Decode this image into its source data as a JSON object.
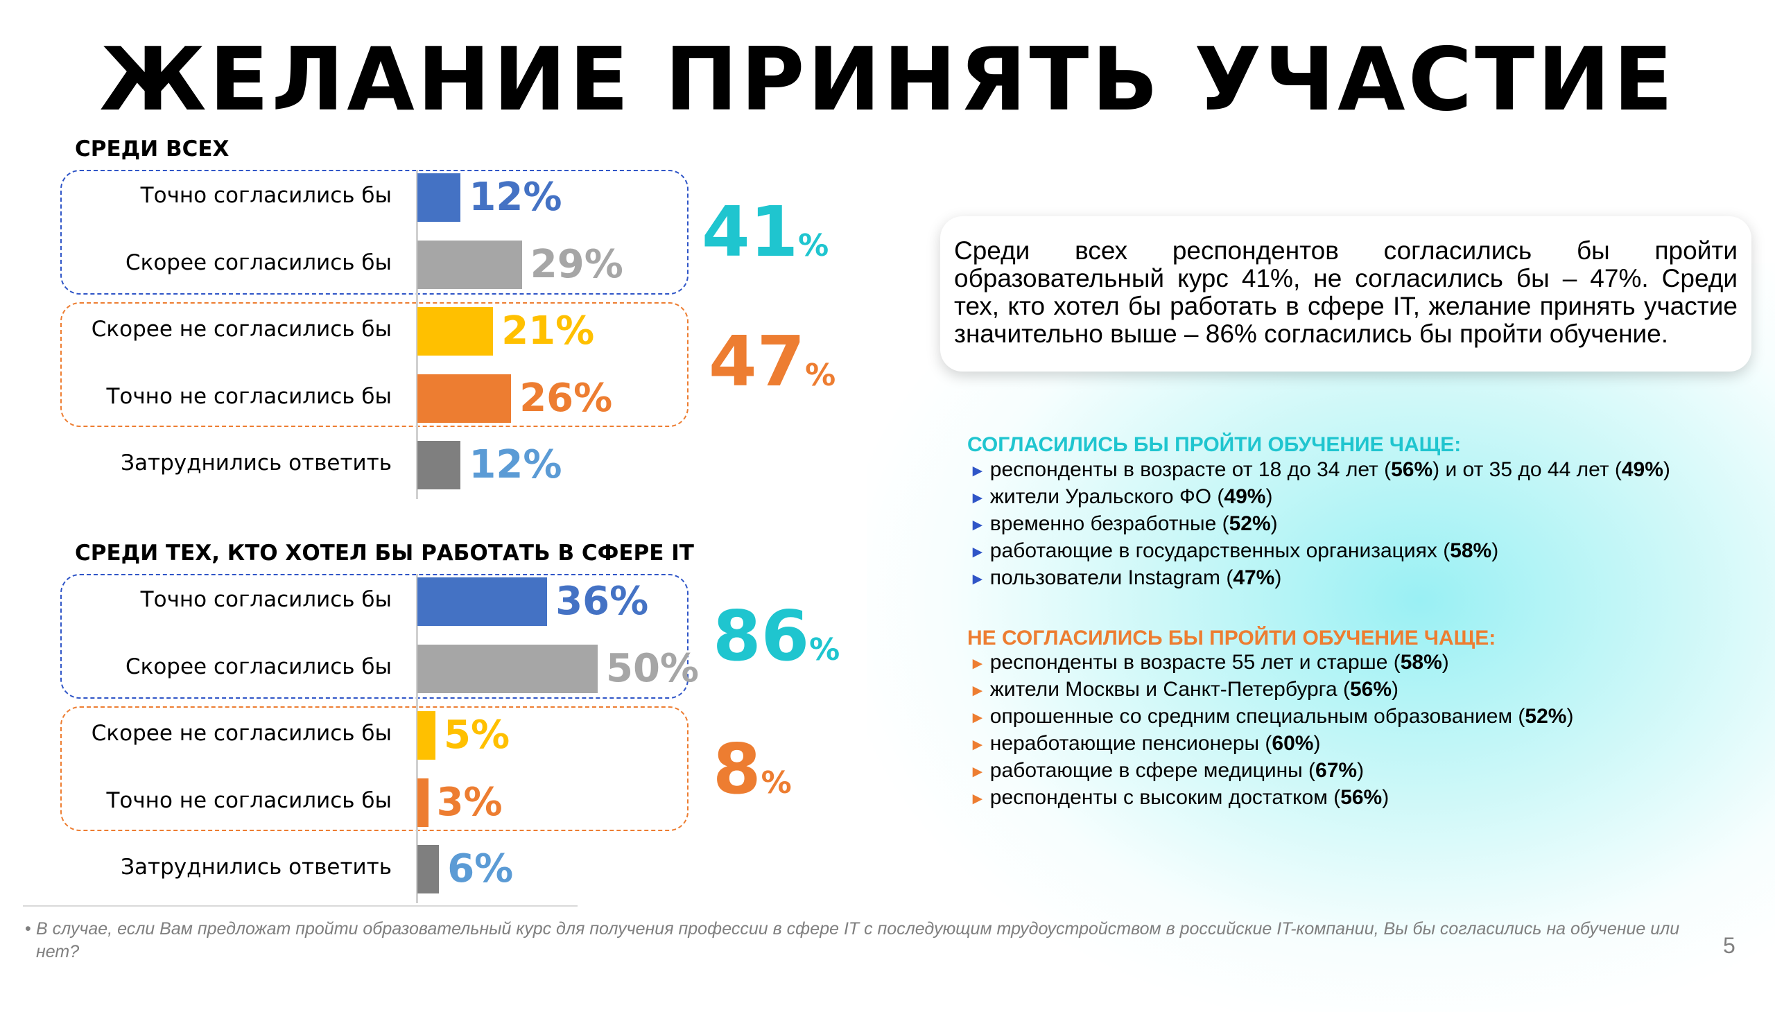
{
  "title": "ЖЕЛАНИЕ ПРИНЯТЬ УЧАСТИЕ",
  "colors": {
    "blue": "#4472c4",
    "gray": "#a6a6a6",
    "yellow": "#ffc000",
    "orange": "#ed7d31",
    "darkgray": "#7f7f7f",
    "teal": "#1fc5cf",
    "label_lightblue": "#5b9bd5",
    "blue_box": "#2f55c7",
    "orange_box": "#ed7d31"
  },
  "chart_data": [
    {
      "type": "bar",
      "orientation": "horizontal",
      "title": "СРЕДИ ВСЕХ",
      "categories": [
        "Точно согласились бы",
        "Скорее согласились бы",
        "Скорее не согласились бы",
        "Точно не согласились бы",
        "Затруднились ответить"
      ],
      "values": [
        12,
        29,
        21,
        26,
        12
      ],
      "value_labels": [
        "12%",
        "29%",
        "21%",
        "26%",
        "12%"
      ],
      "groups": [
        {
          "value": "41",
          "unit": "%",
          "categories": [
            0,
            1
          ]
        },
        {
          "value": "47",
          "unit": "%",
          "categories": [
            2,
            3
          ]
        }
      ]
    },
    {
      "type": "bar",
      "orientation": "horizontal",
      "title": "СРЕДИ ТЕХ, КТО ХОТЕЛ БЫ РАБОТАТЬ В СФЕРЕ IT",
      "categories": [
        "Точно согласились бы",
        "Скорее согласились бы",
        "Скорее не согласились бы",
        "Точно не согласились бы",
        "Затруднились ответить"
      ],
      "values": [
        36,
        50,
        5,
        3,
        6
      ],
      "value_labels": [
        "36%",
        "50%",
        "5%",
        "3%",
        "6%"
      ],
      "groups": [
        {
          "value": "86",
          "unit": "%",
          "categories": [
            0,
            1
          ]
        },
        {
          "value": "8",
          "unit": "%",
          "categories": [
            2,
            3
          ]
        }
      ]
    }
  ],
  "summary": "Среди всех респондентов согласились бы пройти образовательный курс 41%, не согласились бы – 47%. Среди тех, кто хотел бы работать в сфере IT, желание принять участие значительно выше – 86% согласились бы пройти обучение.",
  "agree_list": {
    "title": "СОГЛАСИЛИСЬ БЫ ПРОЙТИ ОБУЧЕНИЕ ЧАЩЕ:",
    "items": [
      {
        "pre": "респонденты в возрасте от 18 до 34 лет (",
        "b1": "56%",
        "mid": ") и от 35 до 44 лет (",
        "b2": "49%",
        "post": ")"
      },
      {
        "pre": "жители Уральского ФО (",
        "b1": "49%",
        "post": ")"
      },
      {
        "pre": "временно безработные (",
        "b1": "52%",
        "post": ")"
      },
      {
        "pre": "работающие в государственных организациях (",
        "b1": "58%",
        "post": ")"
      },
      {
        "pre": "пользователи Instagram (",
        "b1": "47%",
        "post": ")"
      }
    ]
  },
  "disagree_list": {
    "title": "НЕ СОГЛАСИЛИСЬ БЫ ПРОЙТИ ОБУЧЕНИЕ ЧАЩЕ:",
    "items": [
      {
        "pre": "респонденты в возрасте 55 лет и старше (",
        "b1": "58%",
        "post": ")"
      },
      {
        "pre": "жители Москвы и Санкт-Петербурга (",
        "b1": "56%",
        "post": ")"
      },
      {
        "pre": "опрошенные со средним специальным образованием (",
        "b1": "52%",
        "post": ")"
      },
      {
        "pre": "неработающие пенсионеры (",
        "b1": "60%",
        "post": ")"
      },
      {
        "pre": "работающие в сфере медицины (",
        "b1": "67%",
        "post": ")"
      },
      {
        "pre": "респонденты с высоким достатком (",
        "b1": "56%",
        "post": ")"
      }
    ]
  },
  "footnote": "В случае, если Вам предложат пройти образовательный курс для получения профессии в сфере IT с последующим трудоустройством в российские IT-компании, Вы бы согласились на обучение или нет?",
  "page_number": "5"
}
